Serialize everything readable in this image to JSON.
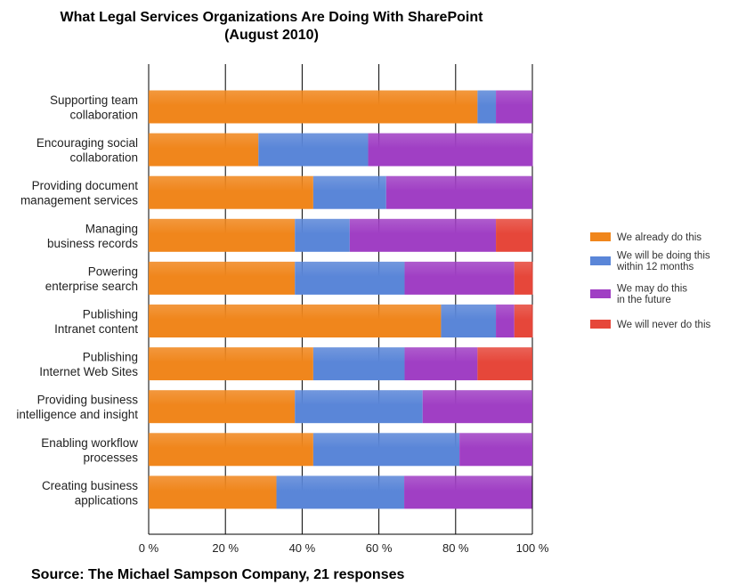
{
  "chart_data": {
    "type": "bar",
    "orientation": "horizontal",
    "stacked": "percent",
    "title": "What Legal Services Organizations Are Doing With SharePoint",
    "subtitle": "(August 2010)",
    "source": "Source: The Michael Sampson Company, 21 responses",
    "xlim": [
      0,
      100
    ],
    "xticks": [
      "0 %",
      "20 %",
      "40 %",
      "60 %",
      "80 %",
      "100 %"
    ],
    "grid": "vertical",
    "legend_position": "right",
    "categories": [
      [
        "Supporting team",
        "collaboration"
      ],
      [
        "Encouraging social",
        "collaboration"
      ],
      [
        "Providing document",
        "management services"
      ],
      [
        "Managing",
        "business records"
      ],
      [
        "Powering",
        "enterprise search"
      ],
      [
        "Publishing",
        "Intranet content"
      ],
      [
        "Publishing",
        "Internet Web Sites"
      ],
      [
        "Providing business",
        "intelligence and insight"
      ],
      [
        "Enabling workflow",
        "processes"
      ],
      [
        "Creating business",
        "applications"
      ]
    ],
    "series": [
      {
        "name": [
          "We already do this"
        ],
        "color": "#f0861c",
        "values": [
          85.7,
          28.6,
          42.9,
          38.1,
          38.1,
          76.2,
          42.9,
          38.1,
          42.9,
          33.3
        ]
      },
      {
        "name": [
          "We will be doing this",
          "within 12 months"
        ],
        "color": "#5a86d8",
        "values": [
          4.8,
          28.6,
          19.0,
          14.3,
          28.6,
          14.3,
          23.8,
          33.3,
          38.1,
          33.3
        ]
      },
      {
        "name": [
          "We may do this",
          "in the future"
        ],
        "color": "#a03fc4",
        "values": [
          9.5,
          42.9,
          38.1,
          38.1,
          28.6,
          4.8,
          19.0,
          28.6,
          19.0,
          33.3
        ]
      },
      {
        "name": [
          "We will never do this"
        ],
        "color": "#e6473a",
        "values": [
          0,
          0,
          0,
          9.5,
          4.8,
          4.8,
          14.3,
          0,
          0,
          0
        ]
      }
    ]
  }
}
